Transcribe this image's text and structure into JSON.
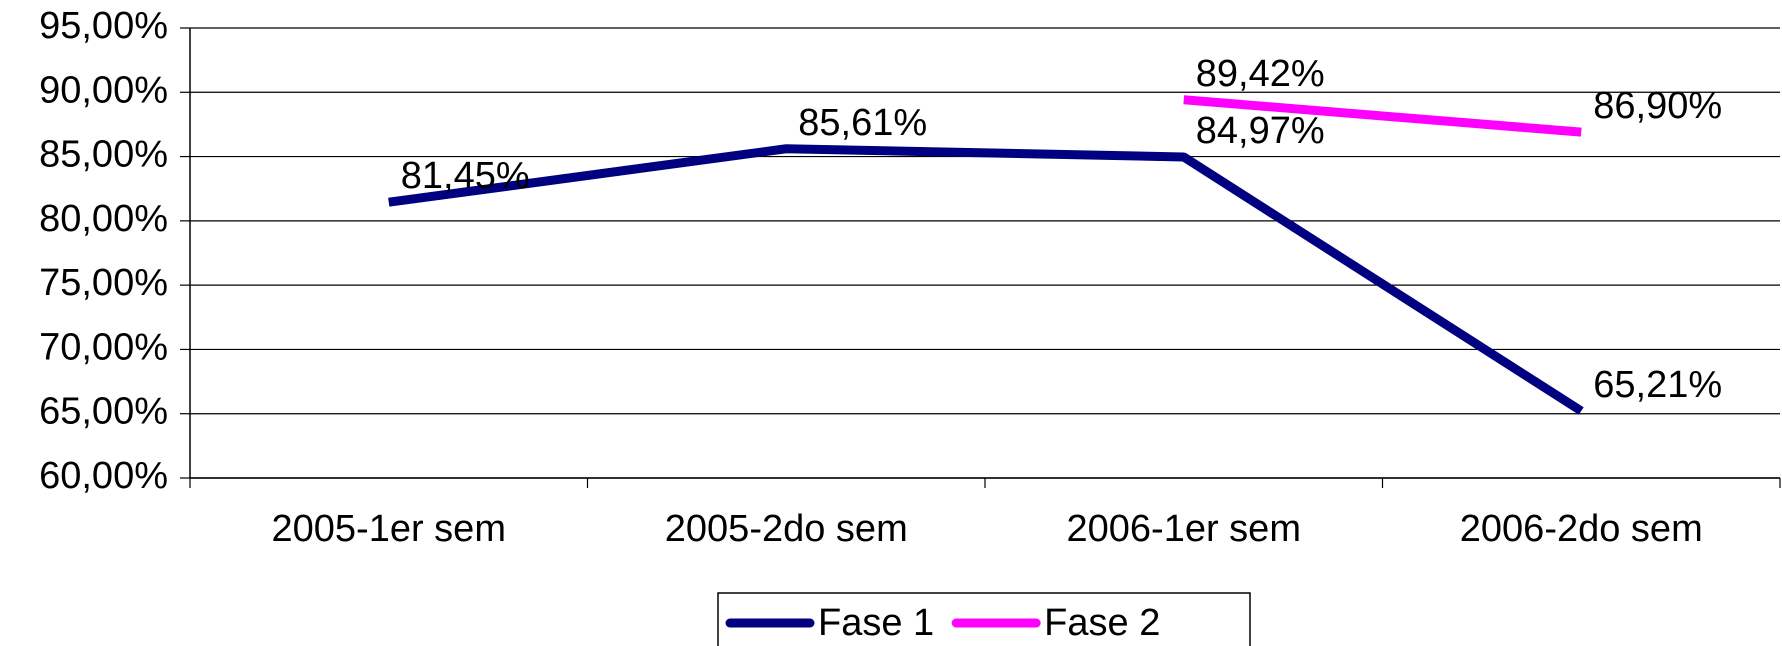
{
  "chart_data": {
    "type": "line",
    "categories": [
      "2005-1er sem",
      "2005-2do sem",
      "2006-1er sem",
      "2006-2do sem"
    ],
    "series": [
      {
        "name": "Fase 1",
        "color": "#000080",
        "values": [
          81.45,
          85.61,
          84.97,
          65.21
        ],
        "value_labels": [
          "81,45%",
          "85,61%",
          "84,97%",
          "65,21%"
        ]
      },
      {
        "name": "Fase 2",
        "color": "#ff00ff",
        "values": [
          null,
          null,
          89.42,
          86.9
        ],
        "value_labels": [
          null,
          null,
          "89,42%",
          "86,90%"
        ]
      }
    ],
    "ylim": [
      60,
      95
    ],
    "yticks": [
      {
        "value": 60,
        "label": "60,00%"
      },
      {
        "value": 65,
        "label": "65,00%"
      },
      {
        "value": 70,
        "label": "70,00%"
      },
      {
        "value": 75,
        "label": "75,00%"
      },
      {
        "value": 80,
        "label": "80,00%"
      },
      {
        "value": 85,
        "label": "85,00%"
      },
      {
        "value": 90,
        "label": "90,00%"
      },
      {
        "value": 95,
        "label": "95,00%"
      }
    ],
    "grid": true,
    "legend": "bottom"
  }
}
